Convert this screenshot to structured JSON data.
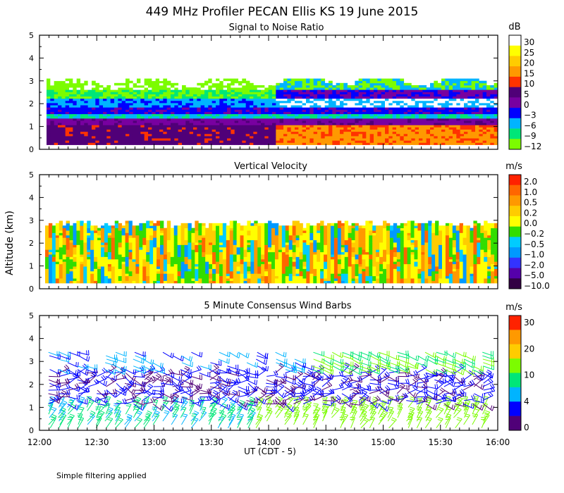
{
  "chart_data": {
    "title": "449 MHz Profiler PECAN Ellis KS 19 June 2015",
    "ylabel": "Altitude (km)",
    "xlabel": "UT  (CDT - 5)",
    "footnote": "Simple filtering applied",
    "x_ticks": [
      "12:00",
      "12:30",
      "13:00",
      "13:30",
      "14:00",
      "14:30",
      "15:00",
      "15:30",
      "16:00"
    ],
    "y_ticks": [
      "0",
      "1",
      "2",
      "3",
      "4",
      "5"
    ],
    "ylim": [
      0,
      5
    ],
    "xlim": [
      "12:00",
      "16:00"
    ],
    "panels": [
      {
        "type": "heatmap",
        "title": "Signal to Noise Ratio",
        "unit": "dB",
        "colorbar_labels": [
          "30",
          "25",
          "20",
          "15",
          "10",
          "5",
          "0",
          "−3",
          "−6",
          "−9",
          "−12"
        ],
        "colors": [
          "#ffffff",
          "#ffff00",
          "#ffcc00",
          "#ff9900",
          "#ff3300",
          "#500078",
          "#7800a0",
          "#0000ff",
          "#00b4ff",
          "#00e678",
          "#7cfc00"
        ],
        "layers": [
          {
            "base_km": 0.2,
            "top_km": 1.0,
            "before_1410": "purple",
            "after_1410": "orange"
          },
          {
            "base_km": 1.0,
            "top_km": 1.4,
            "before_1410": "deep purple",
            "after_1410": "deep purple"
          },
          {
            "base_km": 1.4,
            "top_km": 2.2,
            "before_1410": "blue / cyan",
            "after_1410": "cyan / green"
          },
          {
            "base_km": 2.2,
            "top_km": 3.1,
            "before_1410": "green",
            "after_1410": "purple / green"
          }
        ]
      },
      {
        "type": "heatmap",
        "title": "Vertical Velocity",
        "unit": "m/s",
        "colorbar_labels": [
          "2.0",
          "1.0",
          "0.5",
          "0.2",
          "0.0",
          "−0.2",
          "−0.5",
          "−1.0",
          "−2.0",
          "−5.0",
          "−10.0"
        ],
        "colors": [
          "#ff2200",
          "#ff6600",
          "#ff9900",
          "#ffcc00",
          "#ffff00",
          "#33dd00",
          "#00ccff",
          "#0099ff",
          "#3333ff",
          "#5500aa",
          "#330044"
        ],
        "data_top_km": 2.9
      },
      {
        "type": "barbs",
        "title": "5 Minute Consensus Wind Barbs",
        "unit": "m/s",
        "colorbar_labels": [
          "30",
          "20",
          "10",
          "4",
          "0"
        ],
        "colors": [
          "#ff2200",
          "#ff9900",
          "#ffcc00",
          "#7cfc00",
          "#00e678",
          "#00b4ff",
          "#0000ff",
          "#500078"
        ],
        "data_top_km": 3.6
      }
    ]
  }
}
